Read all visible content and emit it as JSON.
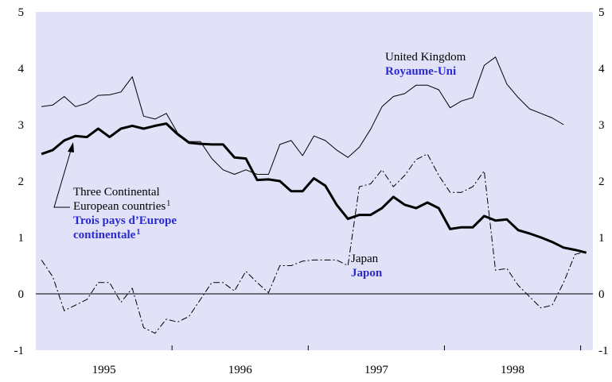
{
  "chart_data": {
    "type": "line",
    "xlim": [
      1995,
      1999.09
    ],
    "xticks": [
      {
        "value": 1995.5,
        "label": "1995"
      },
      {
        "value": 1996.5,
        "label": "1996"
      },
      {
        "value": 1997.5,
        "label": "1997"
      },
      {
        "value": 1998.5,
        "label": "1998"
      }
    ],
    "ylim": [
      -1,
      5
    ],
    "yticks": [
      -1,
      0,
      1,
      2,
      3,
      4,
      5
    ],
    "background": "#e1e1f8",
    "series": [
      {
        "label": [
          "United Kingdom"
        ],
        "label_fr": [
          "Royaume-Uni"
        ],
        "color": "#000",
        "width": 1,
        "values": [
          3.32,
          3.35,
          3.5,
          3.32,
          3.38,
          3.52,
          3.53,
          3.58,
          3.85,
          3.15,
          3.1,
          3.2,
          2.85,
          2.7,
          2.7,
          2.4,
          2.2,
          2.12,
          2.2,
          2.12,
          2.12,
          2.65,
          2.72,
          2.45,
          2.8,
          2.72,
          2.55,
          2.42,
          2.6,
          2.92,
          3.32,
          3.5,
          3.55,
          3.7,
          3.7,
          3.62,
          3.3,
          3.42,
          3.48,
          4.05,
          4.2,
          3.72,
          3.48,
          3.28,
          3.2,
          3.12,
          3.0,
          null,
          null
        ]
      },
      {
        "label": [
          "Three Continental",
          "European countries"
        ],
        "label_fr": [
          "Trois pays d’Europe",
          "continentale"
        ],
        "note_mark": "1",
        "color": "#000",
        "width": 3,
        "values": [
          2.48,
          2.55,
          2.72,
          2.8,
          2.78,
          2.93,
          2.78,
          2.93,
          2.98,
          2.93,
          2.98,
          3.02,
          2.83,
          2.68,
          2.66,
          2.65,
          2.65,
          2.42,
          2.4,
          2.02,
          2.03,
          2.0,
          1.82,
          1.82,
          2.05,
          1.92,
          1.58,
          1.33,
          1.4,
          1.4,
          1.52,
          1.72,
          1.58,
          1.52,
          1.62,
          1.52,
          1.15,
          1.18,
          1.18,
          1.38,
          1.3,
          1.32,
          1.13,
          1.07,
          1.0,
          0.92,
          0.82,
          0.78,
          0.73
        ]
      },
      {
        "label": [
          "Japan"
        ],
        "label_fr": [
          "Japon"
        ],
        "color": "#000",
        "width": 1,
        "dash": "8 3 2 3",
        "values": [
          0.6,
          0.3,
          -0.3,
          -0.2,
          -0.1,
          0.2,
          0.2,
          -0.15,
          0.1,
          -0.6,
          -0.7,
          -0.45,
          -0.5,
          -0.4,
          -0.1,
          0.2,
          0.2,
          0.05,
          0.4,
          0.2,
          0.02,
          0.5,
          0.5,
          0.58,
          0.6,
          0.6,
          0.6,
          0.5,
          1.9,
          1.95,
          2.2,
          1.9,
          2.1,
          2.38,
          2.48,
          2.1,
          1.8,
          1.8,
          1.9,
          2.18,
          0.42,
          0.45,
          0.15,
          -0.05,
          -0.25,
          -0.2,
          0.2,
          0.7,
          0.75
        ]
      }
    ]
  }
}
